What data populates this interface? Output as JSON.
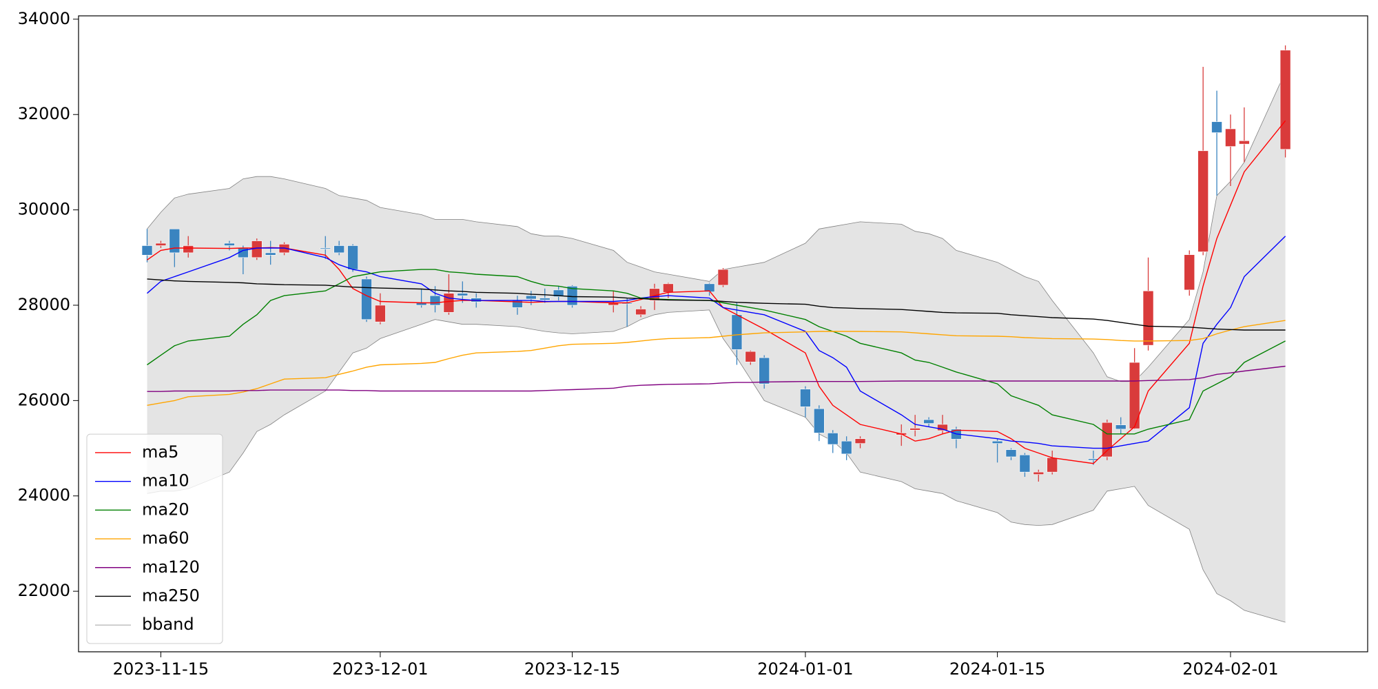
{
  "chart_data": {
    "type": "candlestick",
    "x": [
      "2023-11-14",
      "2023-11-15",
      "2023-11-16",
      "2023-11-17",
      "2023-11-20",
      "2023-11-21",
      "2023-11-22",
      "2023-11-23",
      "2023-11-24",
      "2023-11-27",
      "2023-11-28",
      "2023-11-29",
      "2023-11-30",
      "2023-12-01",
      "2023-12-04",
      "2023-12-05",
      "2023-12-06",
      "2023-12-07",
      "2023-12-08",
      "2023-12-11",
      "2023-12-12",
      "2023-12-13",
      "2023-12-14",
      "2023-12-15",
      "2023-12-18",
      "2023-12-19",
      "2023-12-20",
      "2023-12-21",
      "2023-12-22",
      "2023-12-25",
      "2023-12-26",
      "2023-12-27",
      "2023-12-28",
      "2023-12-29",
      "2024-01-01",
      "2024-01-02",
      "2024-01-03",
      "2024-01-04",
      "2024-01-05",
      "2024-01-08",
      "2024-01-09",
      "2024-01-10",
      "2024-01-11",
      "2024-01-12",
      "2024-01-15",
      "2024-01-16",
      "2024-01-17",
      "2024-01-18",
      "2024-01-19",
      "2024-01-22",
      "2024-01-23",
      "2024-01-24",
      "2024-01-25",
      "2024-01-26",
      "2024-01-29",
      "2024-01-30",
      "2024-01-31",
      "2024-02-01",
      "2024-02-02",
      "2024-02-05"
    ],
    "open": [
      29250,
      29250,
      29600,
      29100,
      29300,
      29200,
      29000,
      29100,
      29100,
      29200,
      29250,
      29250,
      28550,
      27650,
      28050,
      28200,
      27850,
      28250,
      28150,
      28100,
      28200,
      28150,
      28320,
      28400,
      28000,
      28050,
      27800,
      28100,
      28270,
      28450,
      28420,
      27800,
      26810,
      26900,
      26240,
      25830,
      25320,
      25150,
      25100,
      25280,
      25380,
      25600,
      25370,
      25400,
      25150,
      24970,
      24860,
      24450,
      24500,
      24780,
      24820,
      25490,
      25410,
      27160,
      28320,
      29120,
      31850,
      31330,
      31380,
      31270
    ],
    "high": [
      29600,
      29350,
      29600,
      29450,
      29350,
      29250,
      29400,
      29350,
      29320,
      29450,
      29350,
      29280,
      28600,
      28250,
      28350,
      28400,
      28650,
      28500,
      28250,
      28200,
      28300,
      28350,
      28400,
      28420,
      28300,
      28150,
      27980,
      28450,
      28470,
      28470,
      28780,
      28050,
      27050,
      26950,
      26300,
      25900,
      25380,
      25250,
      25250,
      25500,
      25700,
      25650,
      25700,
      25450,
      25200,
      25000,
      24900,
      24550,
      24950,
      24950,
      25600,
      25650,
      27100,
      29000,
      29150,
      33000,
      32500,
      32000,
      32150,
      33450
    ],
    "low": [
      28900,
      29200,
      28800,
      29000,
      29150,
      28650,
      28950,
      28850,
      29050,
      28970,
      29050,
      28700,
      27650,
      27600,
      27950,
      27850,
      27800,
      28050,
      27950,
      27800,
      28000,
      28050,
      28100,
      27950,
      27850,
      27550,
      27750,
      27900,
      28150,
      28200,
      28380,
      26750,
      26750,
      26250,
      25650,
      25150,
      24900,
      24750,
      25000,
      25050,
      25250,
      25450,
      25300,
      25000,
      24700,
      24750,
      24400,
      24300,
      24450,
      24650,
      24750,
      25300,
      25400,
      27050,
      28200,
      29050,
      30300,
      30500,
      31000,
      31100
    ],
    "close": [
      29050,
      29300,
      29100,
      29250,
      29250,
      29000,
      29350,
      29050,
      29280,
      29180,
      29100,
      28750,
      27700,
      28000,
      28000,
      28000,
      28250,
      28200,
      28070,
      27950,
      28130,
      28110,
      28180,
      28000,
      28050,
      28030,
      27920,
      28350,
      28450,
      28280,
      28750,
      27070,
      27030,
      26350,
      25870,
      25320,
      25080,
      24880,
      25200,
      25320,
      25420,
      25520,
      25500,
      25190,
      25100,
      24820,
      24500,
      24500,
      24800,
      24750,
      25540,
      25400,
      26800,
      28300,
      29060,
      31240,
      31620,
      31700,
      31450,
      33350
    ],
    "up_color": "#d93b3b",
    "down_color": "#3a84c0",
    "series": [
      {
        "name": "ma5",
        "color": "red",
        "values": [
          28950,
          29150,
          29200,
          29200,
          29190,
          29200,
          29200,
          29210,
          29200,
          29050,
          28750,
          28350,
          28200,
          28080,
          28050,
          28050,
          28080,
          28100,
          28100,
          28070,
          28060,
          28070,
          28080,
          28080,
          28050,
          28050,
          28120,
          28200,
          28270,
          28300,
          27950,
          27800,
          27650,
          27500,
          27000,
          26300,
          25900,
          25700,
          25500,
          25300,
          25150,
          25200,
          25300,
          25380,
          25350,
          25200,
          25000,
          24900,
          24800,
          24680,
          24950,
          25200,
          25450,
          26200,
          27200,
          28400,
          29400,
          30100,
          30800,
          31870
        ]
      },
      {
        "name": "ma10",
        "color": "blue",
        "values": [
          28250,
          28500,
          28600,
          28700,
          29000,
          29150,
          29200,
          29200,
          29200,
          29000,
          28850,
          28750,
          28700,
          28600,
          28450,
          28250,
          28150,
          28120,
          28100,
          28100,
          28100,
          28080,
          28080,
          28080,
          28080,
          28100,
          28150,
          28180,
          28200,
          28150,
          27950,
          27900,
          27850,
          27800,
          27450,
          27050,
          26900,
          26700,
          26200,
          25700,
          25500,
          25450,
          25400,
          25300,
          25200,
          25150,
          25130,
          25100,
          25050,
          25000,
          25000,
          25050,
          25100,
          25150,
          25850,
          27200,
          27600,
          27950,
          28600,
          29450
        ]
      },
      {
        "name": "ma20",
        "color": "green",
        "values": [
          26750,
          26950,
          27150,
          27250,
          27350,
          27600,
          27800,
          28100,
          28200,
          28300,
          28450,
          28600,
          28650,
          28700,
          28750,
          28750,
          28700,
          28680,
          28650,
          28600,
          28500,
          28420,
          28400,
          28350,
          28300,
          28250,
          28150,
          28130,
          28120,
          28100,
          28050,
          28000,
          27950,
          27900,
          27700,
          27550,
          27450,
          27350,
          27200,
          27000,
          26850,
          26800,
          26700,
          26600,
          26350,
          26100,
          26000,
          25900,
          25700,
          25500,
          25300,
          25300,
          25300,
          25400,
          25600,
          26200,
          26350,
          26500,
          26800,
          27250
        ]
      },
      {
        "name": "ma60",
        "color": "orange",
        "values": [
          25900,
          25950,
          26000,
          26080,
          26130,
          26180,
          26250,
          26350,
          26450,
          26480,
          26550,
          26620,
          26700,
          26750,
          26780,
          26800,
          26880,
          26950,
          27000,
          27030,
          27050,
          27100,
          27150,
          27180,
          27200,
          27220,
          27250,
          27280,
          27300,
          27320,
          27350,
          27380,
          27400,
          27420,
          27440,
          27450,
          27450,
          27450,
          27450,
          27440,
          27420,
          27400,
          27380,
          27360,
          27350,
          27340,
          27320,
          27310,
          27300,
          27290,
          27280,
          27260,
          27250,
          27250,
          27260,
          27300,
          27400,
          27480,
          27550,
          27680
        ]
      },
      {
        "name": "ma120",
        "color": "purple",
        "values": [
          26190,
          26190,
          26200,
          26200,
          26200,
          26210,
          26210,
          26220,
          26220,
          26220,
          26220,
          26210,
          26210,
          26200,
          26200,
          26200,
          26200,
          26200,
          26200,
          26200,
          26200,
          26210,
          26220,
          26230,
          26260,
          26300,
          26320,
          26330,
          26340,
          26350,
          26370,
          26380,
          26380,
          26390,
          26400,
          26400,
          26400,
          26400,
          26400,
          26410,
          26410,
          26410,
          26410,
          26410,
          26410,
          26410,
          26410,
          26410,
          26410,
          26410,
          26410,
          26410,
          26410,
          26420,
          26440,
          26480,
          26550,
          26580,
          26620,
          26720
        ]
      },
      {
        "name": "ma250",
        "color": "black",
        "values": [
          28550,
          28530,
          28510,
          28500,
          28480,
          28470,
          28450,
          28440,
          28430,
          28420,
          28400,
          28380,
          28370,
          28360,
          28340,
          28320,
          28300,
          28290,
          28270,
          28250,
          28230,
          28220,
          28200,
          28180,
          28170,
          28150,
          28140,
          28120,
          28110,
          28100,
          28080,
          28060,
          28050,
          28040,
          28020,
          27980,
          27950,
          27940,
          27930,
          27910,
          27890,
          27870,
          27850,
          27840,
          27830,
          27800,
          27780,
          27760,
          27740,
          27710,
          27680,
          27640,
          27600,
          27560,
          27540,
          27520,
          27500,
          27490,
          27480,
          27480
        ]
      }
    ],
    "bband": {
      "name": "bband",
      "color": "gray",
      "fill": "#e4e4e4",
      "upper": [
        29600,
        29950,
        30250,
        30330,
        30450,
        30650,
        30700,
        30700,
        30650,
        30450,
        30300,
        30250,
        30200,
        30050,
        29900,
        29800,
        29800,
        29800,
        29750,
        29650,
        29500,
        29450,
        29450,
        29400,
        29150,
        28900,
        28800,
        28700,
        28650,
        28500,
        28750,
        28800,
        28850,
        28900,
        29300,
        29600,
        29650,
        29700,
        29750,
        29700,
        29550,
        29500,
        29400,
        29150,
        28900,
        28750,
        28600,
        28500,
        28100,
        27000,
        26500,
        26400,
        26400,
        26700,
        27700,
        28700,
        30300,
        30600,
        31000,
        32900
      ],
      "lower": [
        24050,
        24100,
        24100,
        24150,
        24500,
        24900,
        25350,
        25500,
        25700,
        26200,
        26600,
        27000,
        27100,
        27300,
        27600,
        27700,
        27650,
        27600,
        27600,
        27550,
        27500,
        27450,
        27420,
        27400,
        27450,
        27550,
        27700,
        27800,
        27850,
        27900,
        27300,
        26900,
        26450,
        26000,
        25650,
        25300,
        25150,
        24900,
        24500,
        24300,
        24150,
        24100,
        24050,
        23900,
        23650,
        23450,
        23400,
        23380,
        23400,
        23700,
        24100,
        24150,
        24200,
        23800,
        23300,
        22450,
        21950,
        21800,
        21600,
        21350
      ]
    },
    "xlim": [
      "2023-11-09",
      "2024-02-11"
    ],
    "xticks": [
      "2023-11-15",
      "2023-12-01",
      "2023-12-15",
      "2024-01-01",
      "2024-01-15",
      "2024-02-01"
    ],
    "ylim": [
      20730,
      34070
    ],
    "yticks": [
      22000,
      24000,
      26000,
      28000,
      30000,
      32000,
      34000
    ],
    "legend": "lower left"
  }
}
